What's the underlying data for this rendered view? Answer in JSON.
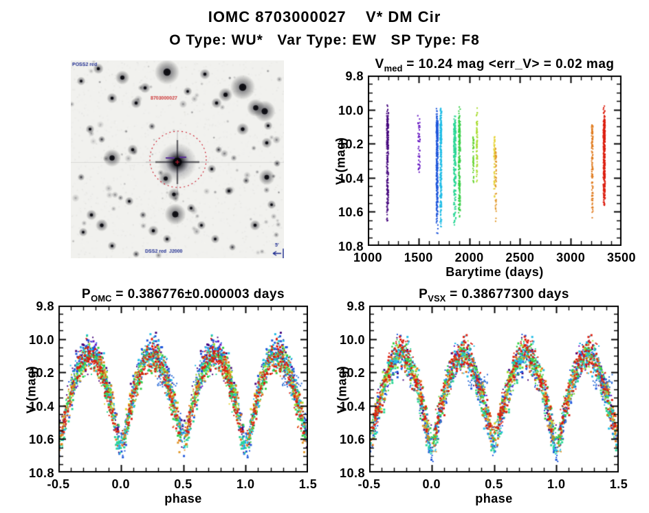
{
  "page": {
    "title": "IOMC 8703000027    V* DM Cir",
    "subtitle": "O Type: WU*   Var Type: EW   SP Type: F8",
    "background": "#ffffff",
    "text_color": "#000000"
  },
  "finder": {
    "labels": {
      "top_left": "POSS2 red",
      "target": "8703000027",
      "bottom": "DSS2 red  J2000",
      "scale": "5'"
    },
    "label_color_blue": "#1c2a8f",
    "label_color_red": "#cc3333",
    "aperture_color": "#cc2233",
    "marker_color": "#5a2d9a",
    "background": "#f1f1ee",
    "target_center": [
      155,
      148
    ],
    "aperture_radius": 41,
    "stars": [
      [
        140,
        17,
        7
      ],
      [
        250,
        39,
        7
      ],
      [
        269,
        69,
        5
      ],
      [
        282,
        74,
        6
      ],
      [
        225,
        50,
        4
      ],
      [
        75,
        25,
        4
      ],
      [
        40,
        12,
        3
      ],
      [
        15,
        30,
        2.5
      ],
      [
        108,
        40,
        3
      ],
      [
        170,
        45,
        2.5
      ],
      [
        195,
        20,
        3
      ],
      [
        95,
        62,
        3
      ],
      [
        60,
        55,
        3
      ],
      [
        212,
        62,
        3
      ],
      [
        250,
        100,
        3.5
      ],
      [
        285,
        120,
        3
      ],
      [
        287,
        95,
        2.5
      ],
      [
        28,
        100,
        2.5
      ],
      [
        45,
        115,
        2
      ],
      [
        90,
        130,
        3
      ],
      [
        118,
        96,
        2
      ],
      [
        60,
        142,
        5
      ],
      [
        15,
        170,
        2
      ],
      [
        205,
        158,
        2.5
      ],
      [
        215,
        130,
        2
      ],
      [
        138,
        172,
        4
      ],
      [
        150,
        195,
        3.5
      ],
      [
        230,
        190,
        2.5
      ],
      [
        255,
        175,
        2
      ],
      [
        285,
        170,
        4.5
      ],
      [
        300,
        150,
        2
      ],
      [
        85,
        205,
        2.5
      ],
      [
        105,
        225,
        2
      ],
      [
        152,
        224,
        6
      ],
      [
        175,
        215,
        2.5
      ],
      [
        190,
        240,
        2.5
      ],
      [
        210,
        260,
        2.5
      ],
      [
        235,
        272,
        2
      ],
      [
        30,
        225,
        3
      ],
      [
        45,
        240,
        3.5
      ],
      [
        18,
        250,
        2.5
      ],
      [
        60,
        270,
        2.5
      ],
      [
        95,
        282,
        2
      ],
      [
        140,
        260,
        2.5
      ],
      [
        268,
        240,
        3
      ],
      [
        292,
        210,
        2.5
      ],
      [
        120,
        248,
        3
      ]
    ]
  },
  "chart_data": [
    {
      "id": "time_series",
      "type": "scatter",
      "seed": 101,
      "title": {
        "prefix": "V",
        "sub": "med",
        "rest": " = 10.24 mag <err_V> = 0.02 mag"
      },
      "xlabel": "Barytime (days)",
      "ylabel": "V (mag)",
      "xlim": [
        1000,
        3500
      ],
      "ylim": [
        9.8,
        10.8
      ],
      "y_inverted_magnitude_axis": true,
      "grid": false,
      "xticks": {
        "values": [
          1000,
          1500,
          2000,
          2500,
          3000,
          3500
        ],
        "labels": [
          "1000",
          "1500",
          "2000",
          "2500",
          "3000",
          "3500"
        ]
      },
      "yticks": {
        "values": [
          9.8,
          10.0,
          10.2,
          10.4,
          10.6,
          10.8
        ],
        "labels": [
          "9.8",
          "10.0",
          "10.2",
          "10.4",
          "10.6",
          "10.8"
        ]
      },
      "x_minor": 100,
      "y_minor": 0.05,
      "clusters": [
        {
          "t": 1195,
          "dt": 18,
          "color": "#46077e",
          "vmin": 9.96,
          "vmax": 10.67,
          "n": 200
        },
        {
          "t": 1505,
          "dt": 25,
          "color": "#6212c1",
          "vmin": 10.02,
          "vmax": 10.36,
          "n": 42
        },
        {
          "t": 1683,
          "dt": 16,
          "color": "#1f57db",
          "vmin": 9.98,
          "vmax": 10.73,
          "n": 300
        },
        {
          "t": 1720,
          "dt": 16,
          "color": "#22bde6",
          "vmin": 9.97,
          "vmax": 10.68,
          "n": 260
        },
        {
          "t": 1857,
          "dt": 22,
          "color": "#2bd796",
          "vmin": 10.04,
          "vmax": 10.68,
          "n": 230
        },
        {
          "t": 1903,
          "dt": 16,
          "color": "#36cf46",
          "vmin": 9.99,
          "vmax": 10.62,
          "n": 200
        },
        {
          "t": 2040,
          "dt": 10,
          "color": "#66d42f",
          "vmin": 10.17,
          "vmax": 10.42,
          "n": 45
        },
        {
          "t": 2075,
          "dt": 10,
          "color": "#a8dc2e",
          "vmin": 10.0,
          "vmax": 10.42,
          "n": 65
        },
        {
          "t": 2248,
          "dt": 10,
          "color": "#e5d338",
          "vmin": 10.17,
          "vmax": 10.52,
          "n": 55
        },
        {
          "t": 2262,
          "dt": 10,
          "color": "#e2992b",
          "vmin": 10.23,
          "vmax": 10.67,
          "n": 48
        },
        {
          "t": 3212,
          "dt": 14,
          "color": "#e07b1e",
          "vmin": 10.1,
          "vmax": 10.65,
          "n": 110
        },
        {
          "t": 3330,
          "dt": 18,
          "color": "#dc1f10",
          "vmin": 9.97,
          "vmax": 10.56,
          "n": 320
        }
      ]
    },
    {
      "id": "phase_omc",
      "type": "scatter",
      "seed": 202,
      "title": {
        "prefix": "P",
        "sub": "OMC",
        "rest": " = 0.386776±0.000003 days"
      },
      "xlabel": "phase",
      "ylabel": "V (mag)",
      "xlim": [
        -0.5,
        1.5
      ],
      "ylim": [
        9.8,
        10.8
      ],
      "y_inverted_magnitude_axis": true,
      "grid": false,
      "xticks": {
        "values": [
          -0.5,
          0.0,
          0.5,
          1.0,
          1.5
        ],
        "labels": [
          "-0.5",
          "0.0",
          "0.5",
          "1.0",
          "1.5"
        ]
      },
      "yticks": {
        "values": [
          9.8,
          10.0,
          10.2,
          10.4,
          10.6,
          10.8
        ],
        "labels": [
          "9.8",
          "10.0",
          "10.2",
          "10.4",
          "10.6",
          "10.8"
        ]
      },
      "x_minor": 0.1,
      "y_minor": 0.05,
      "light_curve": {
        "max_brightness_mag": 10.08,
        "faint_base": 10.57,
        "amp": 0.49,
        "primary_min_mag": 10.66,
        "secondary_min_mag": 10.6,
        "primary_extra": 0.09,
        "secondary_extra": 0.025,
        "scatter": 0.048,
        "maxima_phases": [
          0.25,
          0.75
        ],
        "minima_phases": [
          0.0,
          0.5
        ]
      },
      "extras": [
        {
          "kind": "outlier-blob",
          "color": "#2e6fd8",
          "n": 30,
          "phase_range": [
            0.29,
            0.46
          ],
          "mag_range": [
            10.21,
            10.3
          ]
        }
      ]
    },
    {
      "id": "phase_vsx",
      "type": "scatter",
      "seed": 303,
      "title": {
        "prefix": "P",
        "sub": "VSX",
        "rest": " = 0.38677300 days"
      },
      "xlabel": "phase",
      "ylabel": "V (mag)",
      "xlim": [
        -0.5,
        1.5
      ],
      "ylim": [
        9.8,
        10.8
      ],
      "y_inverted_magnitude_axis": true,
      "grid": false,
      "xticks": {
        "values": [
          -0.5,
          0.0,
          0.5,
          1.0,
          1.5
        ],
        "labels": [
          "-0.5",
          "0.0",
          "0.5",
          "1.0",
          "1.5"
        ]
      },
      "yticks": {
        "values": [
          9.8,
          10.0,
          10.2,
          10.4,
          10.6,
          10.8
        ],
        "labels": [
          "9.8",
          "10.0",
          "10.2",
          "10.4",
          "10.6",
          "10.8"
        ]
      },
      "x_minor": 0.1,
      "y_minor": 0.05,
      "light_curve": {
        "max_brightness_mag": 10.08,
        "faint_base": 10.57,
        "amp": 0.49,
        "primary_min_mag": 10.66,
        "secondary_min_mag": 10.6,
        "primary_extra": 0.09,
        "secondary_extra": 0.025,
        "scatter": 0.048,
        "maxima_phases": [
          0.25,
          0.75
        ],
        "minima_phases": [
          0.0,
          0.5
        ]
      },
      "extras": [
        {
          "kind": "outlier-blob",
          "color": "#2e6fd8",
          "n": 30,
          "phase_range": [
            0.29,
            0.46
          ],
          "mag_range": [
            10.21,
            10.3
          ]
        }
      ]
    }
  ]
}
